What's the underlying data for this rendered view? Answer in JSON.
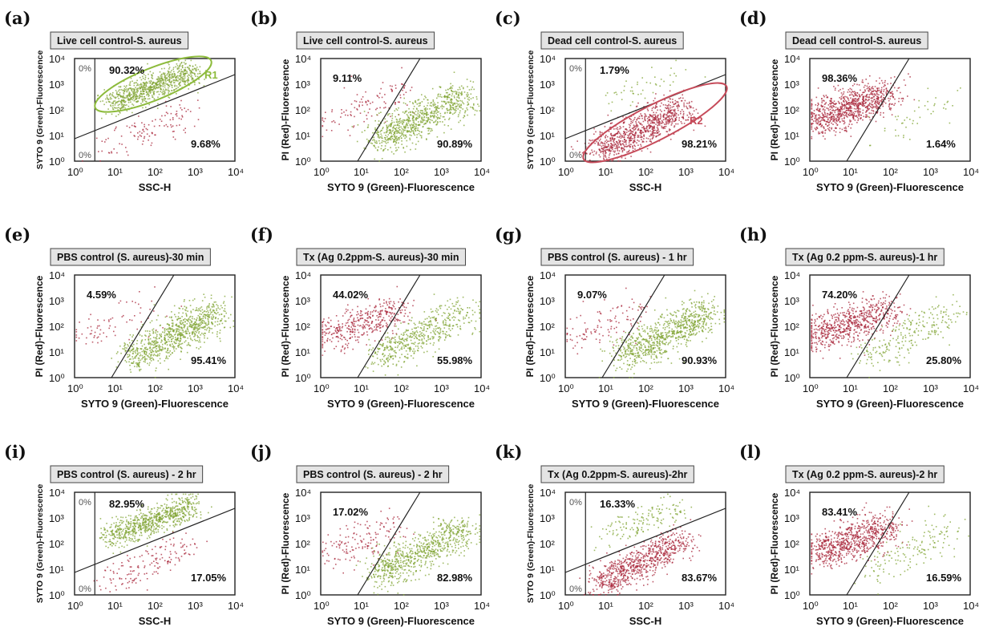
{
  "colors": {
    "green": "#7fa332",
    "red": "#a8263a",
    "green_gate": "#8dbb3c",
    "red_gate": "#c64b5a"
  },
  "chart_data": [
    {
      "letter": "(a)",
      "title": "Live cell control-S. aureus",
      "type": "scatter",
      "xlabel": "SSC-H",
      "ylabel": "SYTO 9 (Green)-Fluorescence",
      "xlim": [
        1,
        10000
      ],
      "ylim": [
        1,
        10000
      ],
      "scale": "log",
      "mode": "ssc",
      "quadrants": [
        {
          "value": "90.32%",
          "pos": "top"
        },
        {
          "value": "9.68%",
          "pos": "bottom-right"
        }
      ],
      "small_labels": [
        "0%",
        "0%"
      ],
      "region": {
        "name": "R1",
        "color": "green"
      },
      "populations": [
        {
          "color": "green",
          "share": 0.9032
        },
        {
          "color": "red",
          "share": 0.0968
        }
      ]
    },
    {
      "letter": "(b)",
      "title": "Live cell control-S. aureus",
      "type": "scatter",
      "xlabel": "SYTO 9 (Green)-Fluorescence",
      "ylabel": "PI (Red)-Fluorescence",
      "xlim": [
        1,
        10000
      ],
      "ylim": [
        1,
        10000
      ],
      "scale": "log",
      "mode": "pi",
      "quadrants": [
        {
          "value": "9.11%",
          "pos": "top-left"
        },
        {
          "value": "90.89%",
          "pos": "bottom-right"
        }
      ],
      "populations": [
        {
          "color": "red",
          "share": 0.0911
        },
        {
          "color": "green",
          "share": 0.9089
        }
      ]
    },
    {
      "letter": "(c)",
      "title": "Dead cell control-S. aureus",
      "type": "scatter",
      "xlabel": "SSC-H",
      "ylabel": "SYTO 9 (Green)-Fluorescence",
      "xlim": [
        1,
        10000
      ],
      "ylim": [
        1,
        10000
      ],
      "scale": "log",
      "mode": "ssc",
      "quadrants": [
        {
          "value": "1.79%",
          "pos": "top"
        },
        {
          "value": "98.21%",
          "pos": "bottom-right"
        }
      ],
      "small_labels": [
        "0%",
        "0%"
      ],
      "region": {
        "name": "R2",
        "color": "red"
      },
      "populations": [
        {
          "color": "green",
          "share": 0.0179
        },
        {
          "color": "red",
          "share": 0.9821
        }
      ]
    },
    {
      "letter": "(d)",
      "title": "Dead cell control-S. aureus",
      "type": "scatter",
      "xlabel": "SYTO 9 (Green)-Fluorescence",
      "ylabel": "PI (Red)-Fluorescence",
      "xlim": [
        1,
        10000
      ],
      "ylim": [
        1,
        10000
      ],
      "scale": "log",
      "mode": "pi",
      "quadrants": [
        {
          "value": "98.36%",
          "pos": "top-left"
        },
        {
          "value": "1.64%",
          "pos": "bottom-right"
        }
      ],
      "populations": [
        {
          "color": "red",
          "share": 0.9836
        },
        {
          "color": "green",
          "share": 0.0164
        }
      ]
    },
    {
      "letter": "(e)",
      "title": "PBS control (S. aureus)-30 min",
      "type": "scatter",
      "xlabel": "SYTO 9 (Green)-Fluorescence",
      "ylabel": "PI (Red)-Fluorescence",
      "xlim": [
        1,
        10000
      ],
      "ylim": [
        1,
        10000
      ],
      "scale": "log",
      "mode": "pi",
      "quadrants": [
        {
          "value": "4.59%",
          "pos": "top-left"
        },
        {
          "value": "95.41%",
          "pos": "bottom-right"
        }
      ],
      "populations": [
        {
          "color": "red",
          "share": 0.0459
        },
        {
          "color": "green",
          "share": 0.9541
        }
      ]
    },
    {
      "letter": "(f)",
      "title": "Tx (Ag 0.2ppm-S. aureus)-30 min",
      "type": "scatter",
      "xlabel": "SYTO 9 (Green)-Fluorescence",
      "ylabel": "PI (Red)-Fluorescence",
      "xlim": [
        1,
        10000
      ],
      "ylim": [
        1,
        10000
      ],
      "scale": "log",
      "mode": "pi",
      "quadrants": [
        {
          "value": "44.02%",
          "pos": "top-left"
        },
        {
          "value": "55.98%",
          "pos": "bottom-right"
        }
      ],
      "populations": [
        {
          "color": "red",
          "share": 0.4402
        },
        {
          "color": "green",
          "share": 0.5598
        }
      ]
    },
    {
      "letter": "(g)",
      "title": "PBS control (S. aureus) - 1 hr",
      "type": "scatter",
      "xlabel": "SYTO 9 (Green)-Fluorescence",
      "ylabel": "PI (Red)-Fluorescence",
      "xlim": [
        1,
        10000
      ],
      "ylim": [
        1,
        10000
      ],
      "scale": "log",
      "mode": "pi",
      "quadrants": [
        {
          "value": "9.07%",
          "pos": "top-left"
        },
        {
          "value": "90.93%",
          "pos": "bottom-right"
        }
      ],
      "populations": [
        {
          "color": "red",
          "share": 0.0907
        },
        {
          "color": "green",
          "share": 0.9093
        }
      ]
    },
    {
      "letter": "(h)",
      "title": "Tx (Ag 0.2 ppm-S. aureus)-1 hr",
      "type": "scatter",
      "xlabel": "SYTO 9 (Green)-Fluorescence",
      "ylabel": "PI (Red)-Fluorescence",
      "xlim": [
        1,
        10000
      ],
      "ylim": [
        1,
        10000
      ],
      "scale": "log",
      "mode": "pi",
      "quadrants": [
        {
          "value": "74.20%",
          "pos": "top-left"
        },
        {
          "value": "25.80%",
          "pos": "bottom-right"
        }
      ],
      "populations": [
        {
          "color": "red",
          "share": 0.742
        },
        {
          "color": "green",
          "share": 0.258
        }
      ]
    },
    {
      "letter": "(i)",
      "title": "PBS control (S. aureus) - 2 hr",
      "type": "scatter",
      "xlabel": "SSC-H",
      "ylabel": "SYTO 9 (Green)-Fluorescence",
      "xlim": [
        1,
        10000
      ],
      "ylim": [
        1,
        10000
      ],
      "scale": "log",
      "mode": "ssc",
      "quadrants": [
        {
          "value": "82.95%",
          "pos": "top"
        },
        {
          "value": "17.05%",
          "pos": "bottom-right"
        }
      ],
      "small_labels": [
        "0%",
        "0%"
      ],
      "populations": [
        {
          "color": "green",
          "share": 0.8295
        },
        {
          "color": "red",
          "share": 0.1705
        }
      ]
    },
    {
      "letter": "(j)",
      "title": "PBS control (S. aureus) - 2 hr",
      "type": "scatter",
      "xlabel": "SYTO 9 (Green)-Fluorescence",
      "ylabel": "PI (Red)-Fluorescence",
      "xlim": [
        1,
        10000
      ],
      "ylim": [
        1,
        10000
      ],
      "scale": "log",
      "mode": "pi",
      "quadrants": [
        {
          "value": "17.02%",
          "pos": "top-left"
        },
        {
          "value": "82.98%",
          "pos": "bottom-right"
        }
      ],
      "populations": [
        {
          "color": "red",
          "share": 0.1702
        },
        {
          "color": "green",
          "share": 0.8298
        }
      ]
    },
    {
      "letter": "(k)",
      "title": "Tx (Ag 0.2ppm-S. aureus)-2hr",
      "type": "scatter",
      "xlabel": "SSC-H",
      "ylabel": "SYTO 9 (Green)-Fluorescence",
      "xlim": [
        1,
        10000
      ],
      "ylim": [
        1,
        10000
      ],
      "scale": "log",
      "mode": "ssc",
      "quadrants": [
        {
          "value": "16.33%",
          "pos": "top"
        },
        {
          "value": "83.67%",
          "pos": "bottom-right"
        }
      ],
      "small_labels": [
        "0%",
        "0%"
      ],
      "populations": [
        {
          "color": "green",
          "share": 0.1633
        },
        {
          "color": "red",
          "share": 0.8367
        }
      ]
    },
    {
      "letter": "(l)",
      "title": "Tx (Ag 0.2 ppm-S. aureus)-2 hr",
      "type": "scatter",
      "xlabel": "SYTO 9 (Green)-Fluorescence",
      "ylabel": "PI (Red)-Fluorescence",
      "xlim": [
        1,
        10000
      ],
      "ylim": [
        1,
        10000
      ],
      "scale": "log",
      "mode": "pi",
      "quadrants": [
        {
          "value": "83.41%",
          "pos": "top-left"
        },
        {
          "value": "16.59%",
          "pos": "bottom-right"
        }
      ],
      "populations": [
        {
          "color": "red",
          "share": 0.8341
        },
        {
          "color": "green",
          "share": 0.1659
        }
      ]
    }
  ]
}
